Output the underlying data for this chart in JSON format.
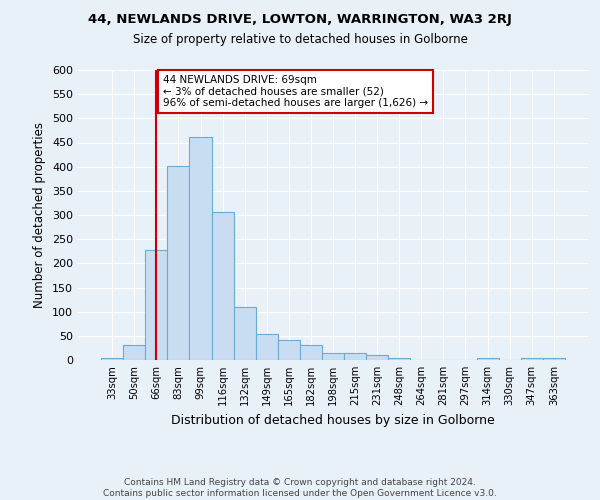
{
  "title": "44, NEWLANDS DRIVE, LOWTON, WARRINGTON, WA3 2RJ",
  "subtitle": "Size of property relative to detached houses in Golborne",
  "xlabel": "Distribution of detached houses by size in Golborne",
  "ylabel": "Number of detached properties",
  "bin_labels": [
    "33sqm",
    "50sqm",
    "66sqm",
    "83sqm",
    "99sqm",
    "116sqm",
    "132sqm",
    "149sqm",
    "165sqm",
    "182sqm",
    "198sqm",
    "215sqm",
    "231sqm",
    "248sqm",
    "264sqm",
    "281sqm",
    "297sqm",
    "314sqm",
    "330sqm",
    "347sqm",
    "363sqm"
  ],
  "bar_heights": [
    5,
    31,
    227,
    401,
    462,
    307,
    110,
    54,
    41,
    31,
    14,
    14,
    10,
    5,
    0,
    0,
    0,
    5,
    0,
    5,
    5
  ],
  "bar_color": "#c9ddf2",
  "bar_edge_color": "#6aaad4",
  "vline_x": 2,
  "vline_color": "#cc0000",
  "annotation_text": "44 NEWLANDS DRIVE: 69sqm\n← 3% of detached houses are smaller (52)\n96% of semi-detached houses are larger (1,626) →",
  "annotation_box_color": "#ffffff",
  "annotation_box_edge": "#cc0000",
  "ylim": [
    0,
    600
  ],
  "yticks": [
    0,
    50,
    100,
    150,
    200,
    250,
    300,
    350,
    400,
    450,
    500,
    550,
    600
  ],
  "footer_line1": "Contains HM Land Registry data © Crown copyright and database right 2024.",
  "footer_line2": "Contains public sector information licensed under the Open Government Licence v3.0.",
  "bg_color": "#e8f0f8",
  "plot_bg_color": "#e8f0f8"
}
